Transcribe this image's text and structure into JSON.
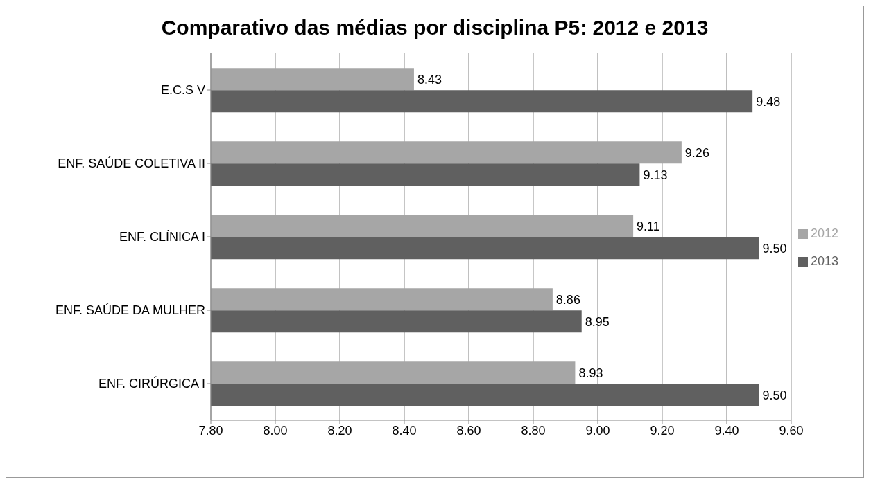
{
  "chart_data": {
    "type": "bar",
    "orientation": "horizontal",
    "title": "Comparativo das médias por disciplina P5: 2012 e 2013",
    "categories": [
      "E.C.S V",
      "ENF. SAÚDE COLETIVA II",
      "ENF. CLÍNICA I",
      "ENF. SAÚDE DA MULHER",
      "ENF. CIRÚRGICA I"
    ],
    "series": [
      {
        "name": "2012",
        "color": "#a6a6a6",
        "values": [
          8.43,
          9.26,
          9.11,
          8.86,
          8.93
        ],
        "value_labels": [
          "8.43",
          "9.26",
          "9.11",
          "8.86",
          "8.93"
        ]
      },
      {
        "name": "2013",
        "color": "#606060",
        "values": [
          9.48,
          9.13,
          9.5,
          8.95,
          9.5
        ],
        "value_labels": [
          "9.48",
          "9.13",
          "9.50",
          "8.95",
          "9.50"
        ]
      }
    ],
    "xlim": [
      7.8,
      9.6
    ],
    "xticks": [
      {
        "value": 7.8,
        "label": "7.80"
      },
      {
        "value": 8,
        "label": "8.00"
      },
      {
        "value": 8.2,
        "label": "8.20"
      },
      {
        "value": 8.4,
        "label": "8.40"
      },
      {
        "value": 8.6,
        "label": "8.60"
      },
      {
        "value": 8.8,
        "label": "8.80"
      },
      {
        "value": 9,
        "label": "9.00"
      },
      {
        "value": 9.2,
        "label": "9.20"
      },
      {
        "value": 9.4,
        "label": "9.40"
      },
      {
        "value": 9.6,
        "label": "9.60"
      }
    ],
    "grid": "x",
    "legend": "right"
  }
}
